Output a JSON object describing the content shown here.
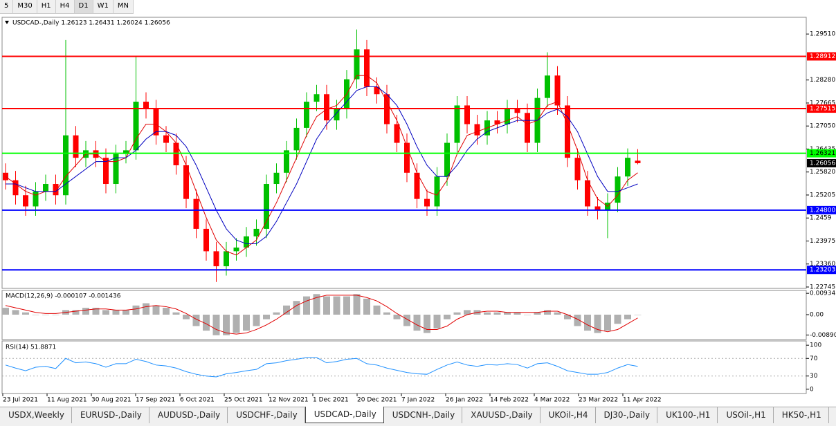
{
  "toolbar": {
    "timeframes": [
      "5",
      "M30",
      "H1",
      "H4",
      "D1",
      "W1",
      "MN"
    ],
    "active": "D1"
  },
  "chart_data": [
    {
      "type": "candlestick",
      "title": "USDCAD-,Daily  1.26123 1.26431 1.26024 1.26056",
      "up_color": "#00c000",
      "down_color": "#ff0000",
      "open": [
        1.258,
        1.256,
        1.252,
        1.249,
        1.253,
        1.255,
        1.252,
        1.268,
        1.262,
        1.264,
        1.262,
        1.255,
        1.263,
        1.264,
        1.277,
        1.275,
        1.268,
        1.266,
        1.26,
        1.251,
        1.243,
        1.237,
        1.233,
        1.237,
        1.238,
        1.241,
        1.243,
        1.255,
        1.258,
        1.264,
        1.27,
        1.277,
        1.279,
        1.272,
        1.275,
        1.283,
        1.291,
        1.281,
        1.279,
        1.271,
        1.266,
        1.258,
        1.251,
        1.249,
        1.257,
        1.266,
        1.276,
        1.271,
        1.268,
        1.272,
        1.271,
        1.275,
        1.274,
        1.266,
        1.278,
        1.284,
        1.276,
        1.262,
        1.256,
        1.249,
        1.248,
        1.25,
        1.257,
        1.26123
      ],
      "high": [
        1.2605,
        1.2585,
        1.2545,
        1.2555,
        1.2575,
        1.2575,
        1.2935,
        1.2705,
        1.2665,
        1.2665,
        1.2645,
        1.2655,
        1.2665,
        1.289,
        1.2795,
        1.2775,
        1.2705,
        1.2685,
        1.2625,
        1.2535,
        1.2455,
        1.2395,
        1.2395,
        1.2405,
        1.2435,
        1.2455,
        1.2575,
        1.2605,
        1.2665,
        1.2725,
        1.2795,
        1.2815,
        1.2815,
        1.2775,
        1.2855,
        1.2963,
        1.2935,
        1.2835,
        1.2815,
        1.2735,
        1.2685,
        1.2605,
        1.2535,
        1.2595,
        1.2685,
        1.2785,
        1.2785,
        1.2735,
        1.2745,
        1.2745,
        1.2775,
        1.2775,
        1.2765,
        1.2805,
        1.2902,
        1.2865,
        1.2785,
        1.2645,
        1.2585,
        1.2515,
        1.2525,
        1.2595,
        1.2645,
        1.26431
      ],
      "low": [
        1.2535,
        1.2495,
        1.2465,
        1.2465,
        1.2505,
        1.2495,
        1.2495,
        1.2595,
        1.2595,
        1.2595,
        1.2525,
        1.2525,
        1.2605,
        1.2615,
        1.2725,
        1.2655,
        1.2635,
        1.2575,
        1.2485,
        1.2405,
        1.2345,
        1.2288,
        1.2305,
        1.2345,
        1.2355,
        1.2385,
        1.2405,
        1.2525,
        1.2555,
        1.2615,
        1.2675,
        1.2745,
        1.2695,
        1.2695,
        1.2725,
        1.2805,
        1.2785,
        1.2765,
        1.2685,
        1.2635,
        1.2555,
        1.2485,
        1.2465,
        1.2465,
        1.2545,
        1.2635,
        1.2685,
        1.2655,
        1.2655,
        1.2685,
        1.2685,
        1.2715,
        1.2635,
        1.2635,
        1.2755,
        1.2735,
        1.2595,
        1.2535,
        1.2465,
        1.2455,
        1.2405,
        1.2475,
        1.2545,
        1.26024
      ],
      "close": [
        1.256,
        1.252,
        1.249,
        1.253,
        1.255,
        1.252,
        1.268,
        1.262,
        1.264,
        1.262,
        1.255,
        1.263,
        1.264,
        1.277,
        1.275,
        1.268,
        1.266,
        1.26,
        1.251,
        1.243,
        1.237,
        1.233,
        1.237,
        1.238,
        1.241,
        1.243,
        1.255,
        1.258,
        1.264,
        1.27,
        1.277,
        1.279,
        1.272,
        1.275,
        1.283,
        1.291,
        1.281,
        1.279,
        1.271,
        1.266,
        1.258,
        1.251,
        1.249,
        1.257,
        1.266,
        1.276,
        1.271,
        1.268,
        1.272,
        1.271,
        1.275,
        1.274,
        1.266,
        1.278,
        1.284,
        1.276,
        1.262,
        1.256,
        1.249,
        1.248,
        1.25,
        1.257,
        1.262,
        1.26056
      ],
      "series": [
        {
          "color": "#e00000",
          "values": [
            1.257,
            1.255,
            1.253,
            1.252,
            1.253,
            1.253,
            1.257,
            1.26,
            1.263,
            1.263,
            1.261,
            1.261,
            1.262,
            1.267,
            1.271,
            1.271,
            1.269,
            1.266,
            1.26,
            1.253,
            1.246,
            1.24,
            1.237,
            1.236,
            1.238,
            1.24,
            1.245,
            1.25,
            1.256,
            1.262,
            1.268,
            1.273,
            1.275,
            1.276,
            1.279,
            1.284,
            1.284,
            1.282,
            1.277,
            1.272,
            1.265,
            1.258,
            1.253,
            1.252,
            1.256,
            1.263,
            1.268,
            1.269,
            1.27,
            1.271,
            1.272,
            1.273,
            1.271,
            1.272,
            1.276,
            1.277,
            1.271,
            1.264,
            1.256,
            1.251,
            1.249,
            1.252,
            1.256,
            1.258
          ]
        },
        {
          "color": "#0000c0",
          "values": [
            1.255,
            1.255,
            1.254,
            1.253,
            1.253,
            1.253,
            1.255,
            1.257,
            1.259,
            1.261,
            1.261,
            1.262,
            1.262,
            1.264,
            1.267,
            1.269,
            1.269,
            1.268,
            1.265,
            1.26,
            1.254,
            1.248,
            1.243,
            1.24,
            1.239,
            1.239,
            1.241,
            1.245,
            1.25,
            1.255,
            1.261,
            1.267,
            1.271,
            1.274,
            1.277,
            1.28,
            1.281,
            1.281,
            1.279,
            1.276,
            1.271,
            1.265,
            1.26,
            1.257,
            1.257,
            1.26,
            1.264,
            1.267,
            1.269,
            1.27,
            1.271,
            1.272,
            1.272,
            1.272,
            1.274,
            1.275,
            1.273,
            1.269,
            1.263,
            1.257,
            1.253,
            1.253,
            1.254,
            1.255
          ]
        }
      ],
      "levels": [
        {
          "value": 1.28912,
          "label": "1.28912",
          "color": "#ff0000"
        },
        {
          "value": 1.27515,
          "label": "1.27515",
          "color": "#ff0000"
        },
        {
          "value": 1.26321,
          "label": "1.26321",
          "color": "#00ff00"
        },
        {
          "value": 1.248,
          "label": "1.24800",
          "color": "#0000ff"
        },
        {
          "value": 1.23203,
          "label": "1.23203",
          "color": "#0000ff"
        }
      ],
      "last": 1.26056,
      "ylim": [
        1.22708,
        1.29957
      ],
      "yticks": [
        {
          "value": 1.2951,
          "label": "1.29510"
        },
        {
          "value": 1.2828,
          "label": "1.28280"
        },
        1.27665,
        {
          "value": 1.2705,
          "label": "1.27050"
        },
        1.26435,
        {
          "value": 1.2582,
          "label": "1.25820"
        },
        1.25205,
        1.2459,
        1.23975,
        {
          "value": 1.2336,
          "label": "1.23360"
        },
        1.22745
      ]
    },
    {
      "type": "macd",
      "title": "MACD(12,26,9) -0.000107 -0.001436",
      "values": [
        0.003,
        0.002,
        0.001,
        0,
        0,
        0,
        0.002,
        0.002,
        0.003,
        0.003,
        0.002,
        0.002,
        0.002,
        0.004,
        0.005,
        0.004,
        0.003,
        0.001,
        -0.002,
        -0.005,
        -0.007,
        -0.009,
        -0.009,
        -0.008,
        -0.007,
        -0.005,
        -0.002,
        0.001,
        0.004,
        0.006,
        0.008,
        0.009,
        0.008,
        0.008,
        0.008,
        0.009,
        0.007,
        0.004,
        0.001,
        -0.002,
        -0.005,
        -0.007,
        -0.008,
        -0.006,
        -0.002,
        0.001,
        0.002,
        0.002,
        0.001,
        0.001,
        0.001,
        0.001,
        0,
        0.001,
        0.002,
        0.001,
        -0.002,
        -0.005,
        -0.007,
        -0.008,
        -0.007,
        -0.004,
        -0.002,
        -0.000107
      ],
      "color": "#b0b0b0",
      "series": [
        {
          "color": "#e00000",
          "values": [
            0.004,
            0.003,
            0.002,
            0.001,
            0.0005,
            0.0005,
            0.001,
            0.0015,
            0.002,
            0.0025,
            0.0025,
            0.002,
            0.002,
            0.0025,
            0.0035,
            0.004,
            0.0035,
            0.0025,
            0.0005,
            -0.002,
            -0.004,
            -0.0065,
            -0.008,
            -0.0085,
            -0.008,
            -0.0065,
            -0.0045,
            -0.002,
            0.001,
            0.004,
            0.006,
            0.0075,
            0.0085,
            0.0085,
            0.0085,
            0.0085,
            0.0075,
            0.006,
            0.0035,
            0.0005,
            -0.002,
            -0.0045,
            -0.0065,
            -0.0065,
            -0.005,
            -0.002,
            0,
            0.001,
            0.0015,
            0.0015,
            0.001,
            0.001,
            0.001,
            0.001,
            0.0015,
            0.0015,
            0,
            -0.002,
            -0.0045,
            -0.0065,
            -0.0075,
            -0.0065,
            -0.004,
            -0.001436
          ]
        }
      ],
      "ylim": [
        -0.0109,
        0.0106
      ],
      "yticks": [
        0.009345,
        {
          "value": 0,
          "label": "0.00"
        },
        -0.008902
      ]
    },
    {
      "type": "rsi",
      "title": "RSI(14) 51.8871",
      "color": "#1e90ff",
      "values": [
        55,
        48,
        42,
        50,
        52,
        47,
        70,
        60,
        62,
        58,
        50,
        58,
        58,
        68,
        63,
        55,
        53,
        48,
        40,
        34,
        30,
        28,
        35,
        38,
        42,
        45,
        58,
        60,
        65,
        68,
        72,
        72,
        60,
        63,
        68,
        70,
        58,
        55,
        48,
        43,
        38,
        35,
        34,
        45,
        55,
        62,
        55,
        52,
        56,
        55,
        58,
        56,
        48,
        58,
        60,
        52,
        42,
        38,
        34,
        34,
        38,
        48,
        56,
        51.8871
      ],
      "ylim": [
        -9.7,
        109.7
      ],
      "yticks": [
        100,
        70,
        30,
        0
      ],
      "levels": [
        70,
        30
      ]
    }
  ],
  "time_axis": {
    "labels": [
      "23 Jul 2021",
      "11 Aug 2021",
      "30 Aug 2021",
      "17 Sep 2021",
      "6 Oct 2021",
      "25 Oct 2021",
      "12 Nov 2021",
      "1 Dec 2021",
      "20 Dec 2021",
      "7 Jan 2022",
      "26 Jan 2022",
      "14 Feb 2022",
      "4 Mar 2022",
      "23 Mar 2022",
      "11 Apr 2022"
    ]
  },
  "tabs": {
    "items": [
      "USDX,Weekly",
      "EURUSD-,Daily",
      "AUDUSD-,Daily",
      "USDCHF-,Daily",
      "USDCAD-,Daily",
      "USDCNH-,Daily",
      "XAUUSD-,Daily",
      "UKOil-,H4",
      "DJ30-,Daily",
      "UK100-,H1",
      "USOil-,H1",
      "HK50-,H1"
    ],
    "active": 4
  }
}
